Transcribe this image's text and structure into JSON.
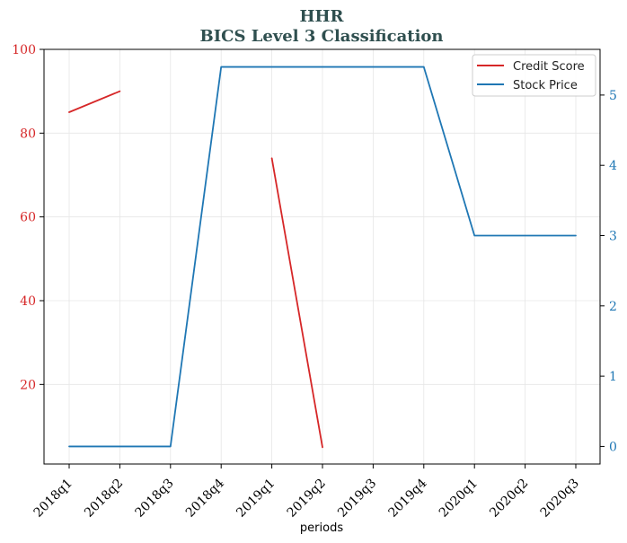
{
  "chart_data": {
    "type": "line",
    "title": "HHR",
    "subtitle": "BICS Level 3 Classification",
    "xlabel": "periods",
    "categories": [
      "2018q1",
      "2018q2",
      "2018q3",
      "2018q4",
      "2019q1",
      "2019q2",
      "2019q3",
      "2019q4",
      "2020q1",
      "2020q2",
      "2020q3"
    ],
    "y_left": {
      "ylim": [
        1.0,
        100.0
      ],
      "ticks": [
        20,
        40,
        60,
        80,
        100
      ],
      "color": "#d62728"
    },
    "y_right": {
      "ylim": [
        -0.25,
        5.65
      ],
      "ticks": [
        0,
        1,
        2,
        3,
        4,
        5
      ],
      "color": "#1f77b4"
    },
    "grid": true,
    "legend_position": "top-right",
    "series": [
      {
        "name": "Credit Score",
        "axis": "left",
        "color": "#d62728",
        "values": [
          85,
          90,
          null,
          null,
          74,
          5,
          null,
          null,
          null,
          null,
          null
        ]
      },
      {
        "name": "Stock Price",
        "axis": "right",
        "color": "#1f77b4",
        "values": [
          0,
          0,
          0,
          5.4,
          5.4,
          5.4,
          5.4,
          5.4,
          3.0,
          3.0,
          3.0
        ]
      }
    ]
  }
}
